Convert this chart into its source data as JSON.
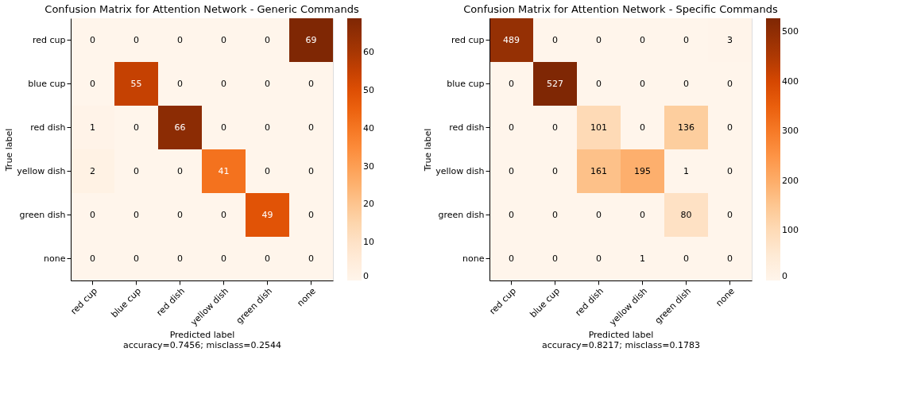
{
  "chart_data": [
    {
      "type": "heatmap",
      "title": "Confusion Matrix for Attention Network - Generic Commands",
      "xlabel": "Predicted label",
      "ylabel": "True label",
      "annotations": [
        "accuracy=0.7456; misclass=0.2544"
      ],
      "categories": [
        "red cup",
        "blue cup",
        "red dish",
        "yellow dish",
        "green dish",
        "none"
      ],
      "y_categories": [
        "red cup",
        "blue cup",
        "red dish",
        "yellow dish",
        "green dish",
        "none"
      ],
      "cells": [
        [
          0,
          0,
          0,
          0,
          0,
          69
        ],
        [
          0,
          55,
          0,
          0,
          0,
          0
        ],
        [
          1,
          0,
          66,
          0,
          0,
          0
        ],
        [
          2,
          0,
          0,
          41,
          0,
          0
        ],
        [
          0,
          0,
          0,
          0,
          49,
          0
        ],
        [
          0,
          0,
          0,
          0,
          0,
          0
        ]
      ],
      "clim": [
        0,
        69
      ],
      "cticks": [
        0,
        10,
        20,
        30,
        40,
        50,
        60
      ],
      "data_labels": true
    },
    {
      "type": "heatmap",
      "title": "Confusion Matrix for Attention Network - Specific Commands",
      "xlabel": "Predicted label",
      "ylabel": "True label",
      "annotations": [
        "accuracy=0.8217; misclass=0.1783"
      ],
      "categories": [
        "red cup",
        "blue cup",
        "red dish",
        "yellow dish",
        "green dish",
        "none"
      ],
      "y_categories": [
        "red cup",
        "blue cup",
        "red dish",
        "yellow dish",
        "green dish",
        "none"
      ],
      "cells": [
        [
          489,
          0,
          0,
          0,
          0,
          3
        ],
        [
          0,
          527,
          0,
          0,
          0,
          0
        ],
        [
          0,
          0,
          101,
          0,
          136,
          0
        ],
        [
          0,
          0,
          161,
          195,
          1,
          0
        ],
        [
          0,
          0,
          0,
          0,
          80,
          0
        ],
        [
          0,
          0,
          0,
          1,
          0,
          0
        ]
      ],
      "clim": [
        0,
        527
      ],
      "cticks": [
        0,
        100,
        200,
        300,
        400,
        500
      ],
      "data_labels": true
    }
  ]
}
